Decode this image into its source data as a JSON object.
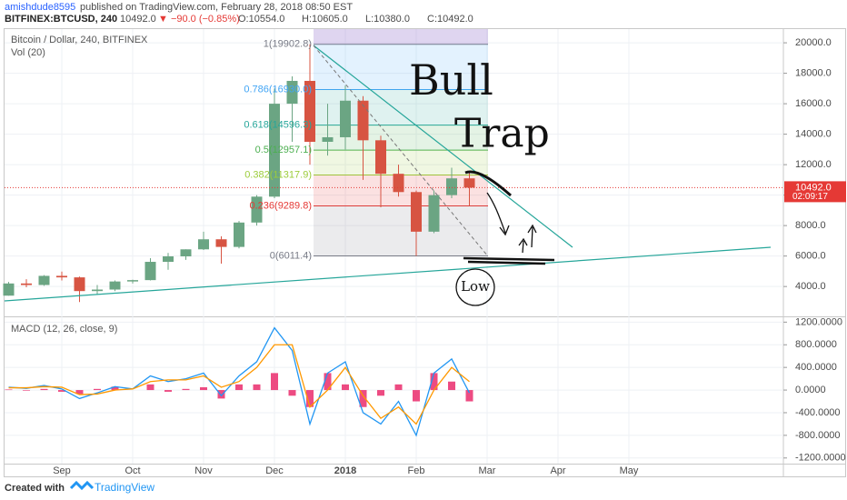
{
  "header": {
    "author": "amishdude8595",
    "published": "published on TradingView.com, February 28, 2018 08:50 EST"
  },
  "symbol_bar": {
    "symbol": "BITFINEX:BTCUSD, 240",
    "last": "10492.0",
    "change": "▼ −90.0 (−0.85%)",
    "open": "O:10554.0",
    "high": "H:10605.0",
    "low": "L:10380.0",
    "close": "C:10492.0"
  },
  "chart_data": [
    {
      "type": "candlestick",
      "title": "Bitcoin / Dollar, 240, BITFINEX",
      "subtitle": "Vol (20)",
      "categories": [
        null,
        null,
        null,
        "Sep",
        null,
        null,
        null,
        "Oct",
        null,
        null,
        null,
        "Nov",
        null,
        null,
        null,
        "Dec",
        null,
        null,
        null,
        "2018",
        null,
        null,
        null,
        "Feb",
        null,
        null,
        null,
        "Mar",
        null,
        null,
        null,
        "Apr",
        null,
        null,
        null,
        "May",
        null,
        null,
        null,
        null,
        null,
        null,
        null,
        null
      ],
      "open": [
        3400,
        4200,
        4100,
        4700,
        4600,
        3700,
        3800,
        4330,
        4420,
        5620,
        5980,
        6440,
        7100,
        6600,
        8200,
        9900,
        16000,
        17500,
        13500,
        13800,
        16200,
        13600,
        11400,
        10200,
        7600,
        10000,
        11100,
        null,
        null,
        null,
        null,
        null,
        null,
        null,
        null,
        null,
        null,
        null,
        null,
        null,
        null,
        null,
        null,
        null
      ],
      "high": [
        4300,
        4480,
        4750,
        4980,
        4650,
        4100,
        4400,
        4450,
        5860,
        6200,
        6440,
        7600,
        7300,
        8300,
        10000,
        17000,
        17800,
        19902.8,
        16000,
        17200,
        16500,
        13900,
        12000,
        10300,
        10300,
        11800,
        11600,
        null,
        null,
        null,
        null,
        null,
        null,
        null,
        null,
        null,
        null,
        null,
        null,
        null,
        null,
        null,
        null,
        null
      ],
      "low": [
        3400,
        3950,
        4050,
        4400,
        2980,
        3500,
        3700,
        4200,
        4400,
        5100,
        5750,
        6400,
        5500,
        6500,
        8000,
        9800,
        13500,
        12000,
        12600,
        13000,
        11000,
        9200,
        9900,
        6011.4,
        7500,
        9800,
        9300,
        null,
        null,
        null,
        null,
        null,
        null,
        null,
        null,
        null,
        null,
        null,
        null,
        null,
        null,
        null,
        null,
        null
      ],
      "close": [
        4200,
        4100,
        4700,
        4600,
        3700,
        3800,
        4330,
        4420,
        5620,
        5980,
        6440,
        7100,
        6600,
        8200,
        9900,
        16000,
        17500,
        13500,
        13800,
        16200,
        13600,
        11400,
        10200,
        7600,
        10000,
        11100,
        10492,
        null,
        null,
        null,
        null,
        null,
        null,
        null,
        null,
        null,
        null,
        null,
        null,
        null,
        null,
        null,
        null,
        null
      ],
      "up_color": "#6ba583",
      "down_color": "#d75442",
      "ylim": [
        2100,
        20900
      ],
      "yticks": [
        {
          "value": 4000,
          "label": "4000.0"
        },
        {
          "value": 6000,
          "label": "6000.0"
        },
        {
          "value": 8000,
          "label": "8000.0"
        },
        {
          "value": 10000,
          "label": "10000.0"
        },
        {
          "value": 12000,
          "label": "12000.0"
        },
        {
          "value": 14000,
          "label": "14000.0"
        },
        {
          "value": 16000,
          "label": "16000.0"
        },
        {
          "value": 18000,
          "label": "18000.0"
        },
        {
          "value": 20000,
          "label": "20000.0"
        }
      ],
      "grid": true,
      "last_price": {
        "value": 10492,
        "label": "10492.0",
        "color": "#e53935"
      },
      "countdown": "02:09:17",
      "fib": {
        "levels": [
          {
            "value": 19902.8,
            "label": "1(19902.8)",
            "color": "#787b86"
          },
          {
            "value": 16930.0,
            "label": "0.786(16930.0)",
            "color": "#42a5f5"
          },
          {
            "value": 14596.3,
            "label": "0.618(14596.3)",
            "color": "#26a69a"
          },
          {
            "value": 12957.1,
            "label": "0.5(12957.1)",
            "color": "#4caf50"
          },
          {
            "value": 11317.9,
            "label": "0.382(11317.9)",
            "color": "#9ccc3a"
          },
          {
            "value": 9289.8,
            "label": "0.236(9289.8)",
            "color": "#e53935"
          },
          {
            "value": 6011.4,
            "label": "0(6011.4)",
            "color": "#787b86"
          }
        ]
      },
      "annotations": [
        "Bull",
        "Trap",
        "Low"
      ]
    },
    {
      "type": "macd",
      "title": "MACD (12, 26, close, 9)",
      "series": [
        {
          "color": "#2196f3",
          "values": [
            50,
            30,
            80,
            20,
            -150,
            -50,
            60,
            20,
            250,
            150,
            200,
            300,
            -100,
            250,
            500,
            1100,
            700,
            -600,
            300,
            500,
            -400,
            -600,
            -200,
            -800,
            300,
            550,
            -50
          ]
        },
        {
          "color": "#ff9800",
          "values": [
            40,
            40,
            60,
            50,
            -80,
            -70,
            0,
            20,
            150,
            180,
            180,
            250,
            50,
            150,
            400,
            800,
            800,
            -300,
            0,
            400,
            -100,
            -500,
            -300,
            -600,
            0,
            400,
            150
          ]
        }
      ],
      "histogram": {
        "color": "#e91e63",
        "values": [
          10,
          -10,
          20,
          -30,
          -70,
          20,
          60,
          0,
          100,
          -30,
          20,
          50,
          -150,
          100,
          100,
          300,
          -100,
          -300,
          300,
          100,
          -300,
          -100,
          100,
          -200,
          300,
          150,
          -200
        ]
      },
      "ylim": [
        -1300,
        1270
      ],
      "yticks": [
        {
          "value": 1200,
          "label": "1200.0000"
        },
        {
          "value": 800,
          "label": "800.0000"
        },
        {
          "value": 400,
          "label": "400.0000"
        },
        {
          "value": 0,
          "label": "0.0000"
        },
        {
          "value": -400,
          "label": "-400.0000"
        },
        {
          "value": -800,
          "label": "-800.0000"
        },
        {
          "value": -1200,
          "label": "-1200.0000"
        }
      ],
      "grid": true
    }
  ],
  "footer": {
    "created": "Created with",
    "brand": "TradingView"
  }
}
